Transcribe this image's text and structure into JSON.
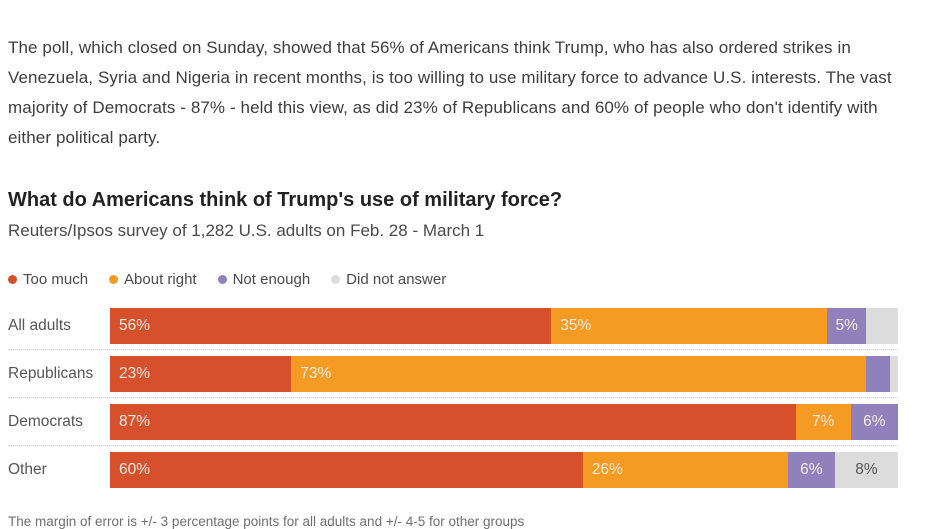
{
  "article": {
    "paragraph": "The poll, which closed on Sunday, showed that 56% of Americans think Trump, who has also ordered strikes in Venezuela, Syria and Nigeria in recent months, is too willing to use military force to advance U.S. interests. The vast majority of Democrats - 87% - held this view, as did 23% of Republicans and 60% of people who don't identify with either political party.",
    "text_color": "#3d3d3d"
  },
  "chart": {
    "title": "What do Americans think of Trump's use of military force?",
    "subtitle": "Reuters/Ipsos survey of 1,282 U.S. adults on Feb. 28 - March 1",
    "footnote": "The margin of error is +/- 3 percentage points for all adults and +/- 4-5 for other groups"
  },
  "chart_data": {
    "type": "bar",
    "stacked": true,
    "orientation": "horizontal",
    "title": "What do Americans think of Trump's use of military force?",
    "subtitle": "Reuters/Ipsos survey of 1,282 U.S. adults on Feb. 28 - March 1",
    "legend_position": "top",
    "xlim": [
      0,
      100
    ],
    "grid": false,
    "categories": [
      "All adults",
      "Republicans",
      "Democrats",
      "Other"
    ],
    "series": [
      {
        "name": "Too much",
        "color": "#d6502b",
        "values": [
          56,
          23,
          87,
          60
        ]
      },
      {
        "name": "About right",
        "color": "#f59b23",
        "values": [
          35,
          73,
          7,
          26
        ]
      },
      {
        "name": "Not enough",
        "color": "#9080bc",
        "values": [
          5,
          3,
          6,
          6
        ]
      },
      {
        "name": "Did not answer",
        "color": "#dcdcdc",
        "values": [
          4,
          1,
          0,
          8
        ]
      }
    ],
    "segment_labels": [
      [
        "56%",
        "35%",
        "5%",
        ""
      ],
      [
        "23%",
        "73%",
        "",
        ""
      ],
      [
        "87%",
        "7%",
        "6%",
        ""
      ],
      [
        "60%",
        "26%",
        "6%",
        "8%"
      ]
    ],
    "label_dark_text_color": "#555555",
    "gray_segment_color": "#dcdcdc"
  }
}
